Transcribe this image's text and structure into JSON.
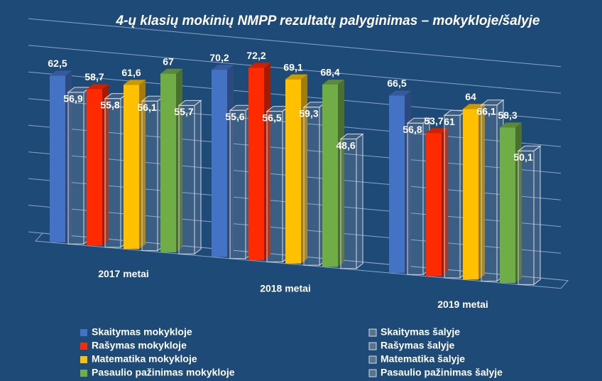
{
  "chart_data": {
    "type": "bar3d",
    "title": "4-ų klasių mokinių NMPP rezultatų palyginimas – mokykloje/šalyje",
    "categories": [
      "2017 metai",
      "2018 metai",
      "2019 metai"
    ],
    "ylim": [
      0,
      80
    ],
    "yticks": [
      0,
      10,
      20,
      30,
      40,
      50,
      60,
      70,
      80
    ],
    "grid": true,
    "series": [
      {
        "name": "Skaitymas mokykloje",
        "color": "#4472c4",
        "values": [
          62.5,
          70.2,
          66.5
        ],
        "value_labels": [
          "62,5",
          "70,2",
          "66,5"
        ]
      },
      {
        "name": "Skaitymas šalyje",
        "color": "#bfbfbf",
        "values": [
          56.9,
          55.6,
          56.8
        ],
        "value_labels": [
          "56,9",
          "55,6",
          "56,8"
        ]
      },
      {
        "name": "Rašymas mokykloje",
        "color": "#ff2a00",
        "values": [
          58.7,
          72.2,
          53.7
        ],
        "value_labels": [
          "58,7",
          "72,2",
          "53,7"
        ]
      },
      {
        "name": "Rašymas šalyje",
        "color": "#bfbfbf",
        "values": [
          55.8,
          56.5,
          61
        ],
        "value_labels": [
          "55,8",
          "56,5",
          "61"
        ]
      },
      {
        "name": "Matematika mokykloje",
        "color": "#ffc000",
        "values": [
          61.6,
          69.1,
          64
        ],
        "value_labels": [
          "61,6",
          "69,1",
          "64"
        ]
      },
      {
        "name": "Matematika šalyje",
        "color": "#bfbfbf",
        "values": [
          56.1,
          59.3,
          66.1
        ],
        "value_labels": [
          "56,1",
          "59,3",
          "66,1"
        ]
      },
      {
        "name": "Pasaulio pažinimas mokykloje",
        "color": "#70ad47",
        "values": [
          67,
          68.4,
          58.3
        ],
        "value_labels": [
          "67",
          "68,4",
          "58,3"
        ]
      },
      {
        "name": "Pasaulio pažinimas šalyje",
        "color": "#bfbfbf",
        "values": [
          55.7,
          48.6,
          50.1
        ],
        "value_labels": [
          "55,7",
          "48,6",
          "50,1"
        ]
      }
    ]
  }
}
